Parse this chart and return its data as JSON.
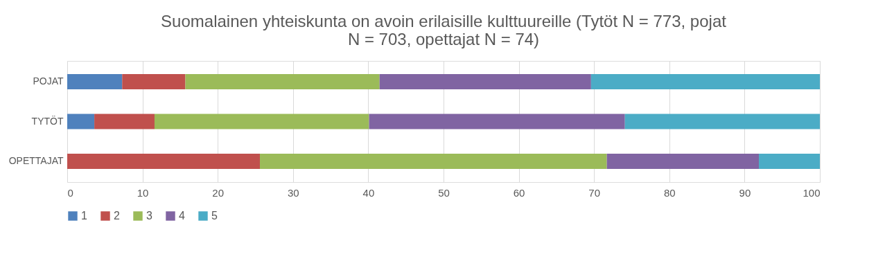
{
  "chart_data": {
    "type": "bar",
    "orientation": "horizontal",
    "stacked": true,
    "title": "Suomalainen yhteiskunta on avoin erilaisille kulttuureille (Tytöt N = 773, pojat N = 703, opettajat N = 74)",
    "categories": [
      "POJAT",
      "TYTÖT",
      "OPETTAJAT"
    ],
    "series": [
      {
        "name": "1",
        "color": "#4f81bd",
        "values": [
          7.3,
          3.6,
          0
        ]
      },
      {
        "name": "2",
        "color": "#c0504d",
        "values": [
          8.4,
          8.0,
          25.6
        ]
      },
      {
        "name": "3",
        "color": "#9bbb59",
        "values": [
          25.8,
          28.5,
          46.1
        ]
      },
      {
        "name": "4",
        "color": "#8064a2",
        "values": [
          28.1,
          34.0,
          20.2
        ]
      },
      {
        "name": "5",
        "color": "#4bacc6",
        "values": [
          30.4,
          25.9,
          8.1
        ]
      }
    ],
    "xlim": [
      0,
      100
    ],
    "xticks": [
      0,
      10,
      20,
      30,
      40,
      50,
      60,
      70,
      80,
      90,
      100
    ],
    "grid": "x",
    "legend": "bottom"
  }
}
